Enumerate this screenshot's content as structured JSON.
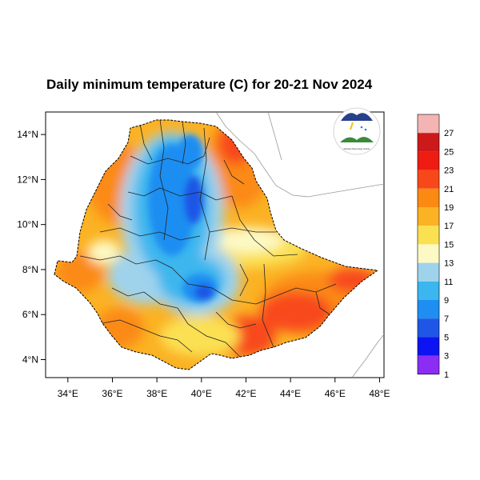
{
  "title": "Daily minimum temperature (C) for 20-21 Nov 2024",
  "map": {
    "lon_range": [
      33,
      48.2
    ],
    "lat_range": [
      3.2,
      15
    ],
    "x_ticks": [
      "34°E",
      "36°E",
      "38°E",
      "40°E",
      "42°E",
      "44°E",
      "46°E",
      "48°E"
    ],
    "y_ticks": [
      "4°N",
      "6°N",
      "8°N",
      "10°N",
      "12°N",
      "14°N"
    ]
  },
  "colorbar": {
    "labels": [
      "27",
      "25",
      "23",
      "21",
      "19",
      "17",
      "15",
      "13",
      "11",
      "9",
      "7",
      "5",
      "3",
      "1"
    ],
    "colors": [
      "#f4b4b4",
      "#cc1a1a",
      "#ee1c12",
      "#f8481a",
      "#fb8a12",
      "#fbb224",
      "#fbe052",
      "#fdf9c4",
      "#9fd3ec",
      "#3cb6ee",
      "#1e8ef2",
      "#1f56e6",
      "#0c14f2",
      "#8b2df2"
    ]
  },
  "logo": {
    "caption": "Ethiopian Meteorology Institute"
  }
}
